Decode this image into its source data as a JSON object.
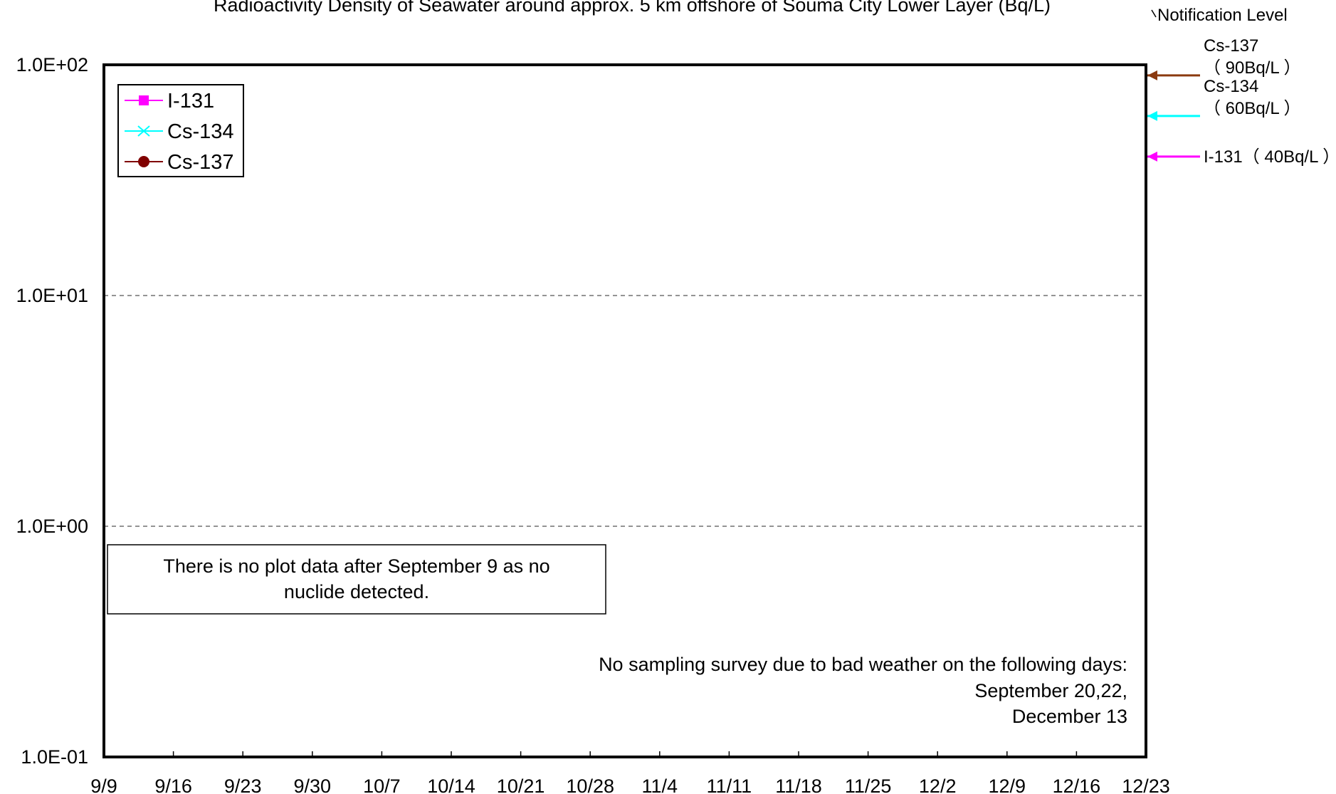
{
  "chart_data": {
    "type": "line",
    "title": "Radioactivity Density of Seawater around approx. 5 km offshore of Souma City Lower Layer (Bq/L)",
    "xlabel": "",
    "ylabel": "",
    "y_scale": "log",
    "ylim": [
      0.1,
      100
    ],
    "y_ticks": [
      {
        "value": 100,
        "label": "1.0E+02"
      },
      {
        "value": 10,
        "label": "1.0E+01"
      },
      {
        "value": 1,
        "label": "1.0E+00"
      },
      {
        "value": 0.1,
        "label": "1.0E-01"
      }
    ],
    "x_tick_labels": [
      "9/9",
      "9/16",
      "9/23",
      "9/30",
      "10/7",
      "10/14",
      "10/21",
      "10/28",
      "11/4",
      "11/11",
      "11/18",
      "11/25",
      "12/2",
      "12/9",
      "12/16",
      "12/23"
    ],
    "grid": {
      "horizontal_dashed": true
    },
    "legend_position": "top-left",
    "series": [
      {
        "name": "I-131",
        "color": "#ff00ff",
        "marker": "square",
        "values": []
      },
      {
        "name": "Cs-134",
        "color": "#00ffff",
        "marker": "x",
        "values": []
      },
      {
        "name": "Cs-137",
        "color": "#800000",
        "marker": "circle",
        "values": []
      }
    ],
    "notification_level": {
      "heading": "Notification Level",
      "items": [
        {
          "nuclide": "Cs-137",
          "limit_text": "（ 90Bq/L ）",
          "value": 90,
          "color": "#8b3a0f"
        },
        {
          "nuclide": "Cs-134",
          "limit_text": "（ 60Bq/L ）",
          "value": 60,
          "color": "#00ffff"
        },
        {
          "nuclide": "I-131",
          "limit_text": "（ 40Bq/L ）",
          "value": 40,
          "color": "#ff00ff"
        }
      ]
    },
    "annotations": {
      "no_data_box": [
        "There is no plot data after September 9 as no",
        "nuclide detected."
      ],
      "no_sampling": [
        "No sampling survey due to bad weather on the following days:",
        "September 20,22,",
        "December 13"
      ]
    }
  }
}
